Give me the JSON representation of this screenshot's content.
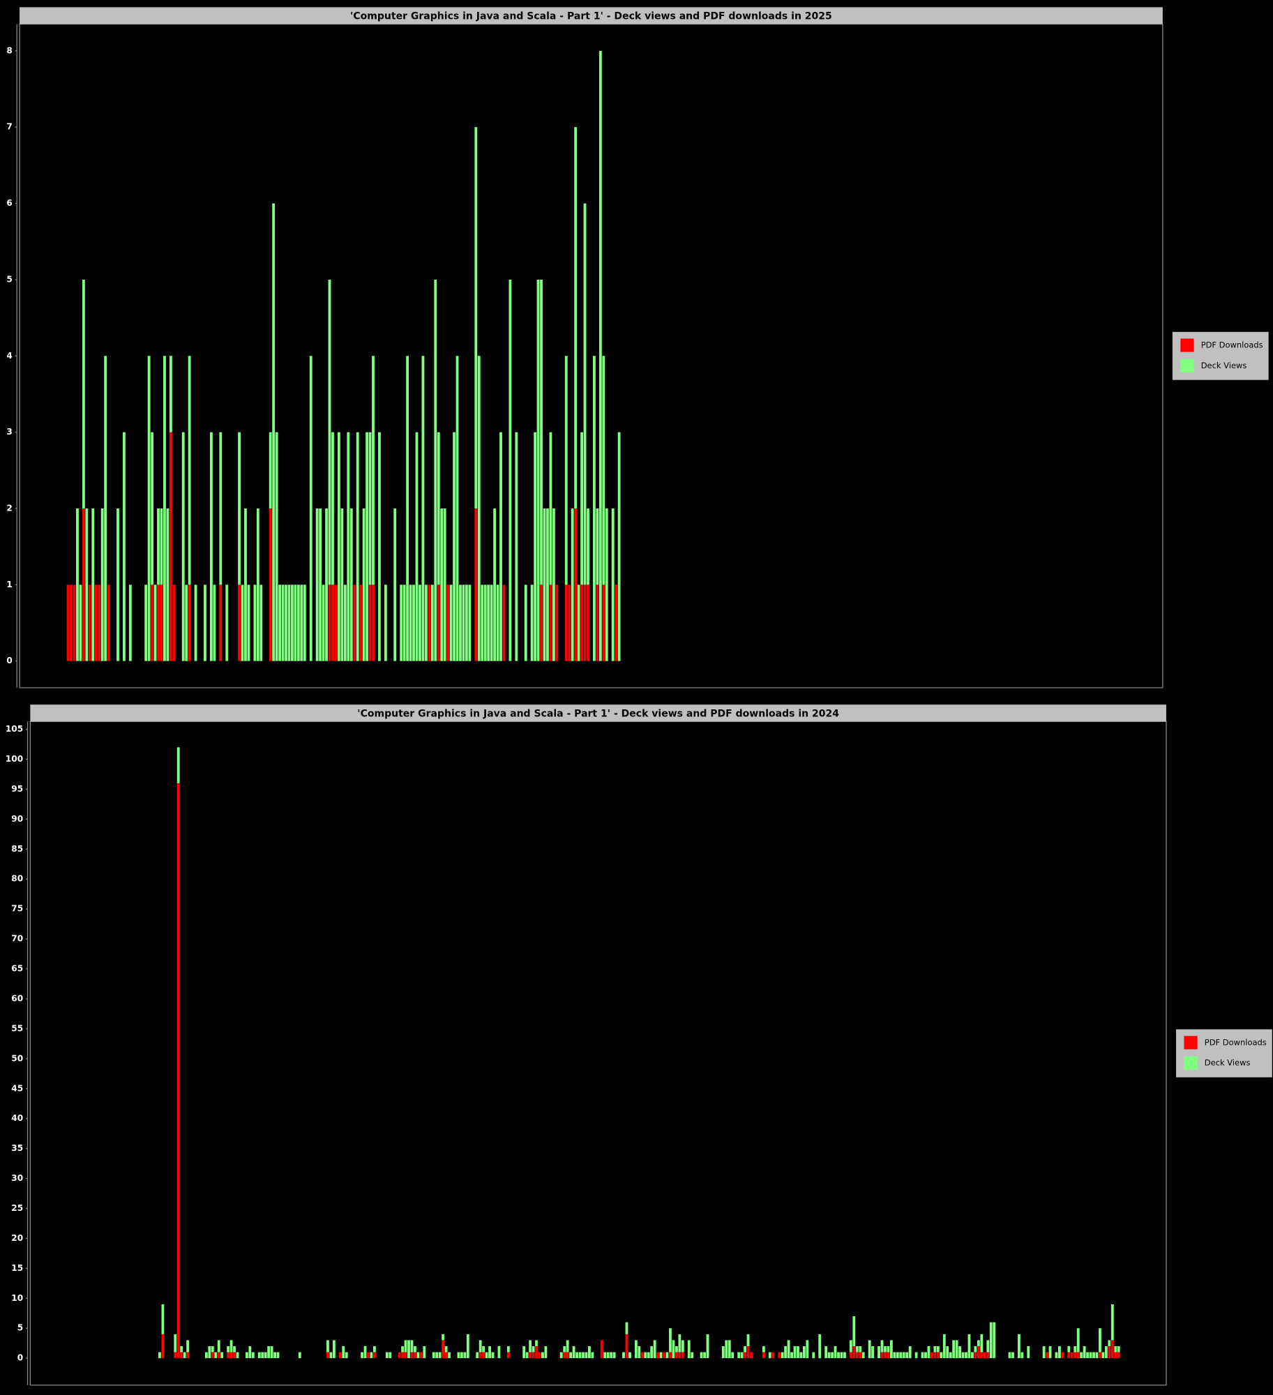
{
  "chart_data": [
    {
      "type": "bar",
      "stacked": true,
      "legend": "right",
      "title": "'Computer Graphics in Java and Scala - Part 1' - Deck views and PDF downloads in 2025",
      "ylim": [
        -0.35,
        8.35
      ],
      "yticks": [
        0,
        1,
        2,
        3,
        4,
        5,
        6,
        7,
        8
      ],
      "series": [
        {
          "name": "PDF Downloads",
          "color": "#ff0000",
          "values": [
            1,
            1,
            1,
            0,
            0,
            2,
            0,
            1,
            0,
            1,
            1,
            0,
            0,
            1,
            0,
            0,
            0,
            0,
            0,
            0,
            0,
            0,
            0,
            0,
            0,
            0,
            0,
            1,
            0,
            1,
            1,
            0,
            0,
            3,
            1,
            0,
            0,
            0,
            0,
            1,
            0,
            0,
            0,
            0,
            0,
            0,
            0,
            0,
            0,
            1,
            0,
            0,
            0,
            0,
            0,
            1,
            0,
            0,
            0,
            0,
            0,
            0,
            0,
            0,
            0,
            2,
            0,
            0,
            0,
            0,
            0,
            0,
            0,
            0,
            0,
            0,
            0,
            0,
            0,
            0,
            0,
            0,
            0,
            0,
            1,
            1,
            1,
            0,
            0,
            0,
            0,
            0,
            1,
            0,
            1,
            0,
            0,
            1,
            1,
            0,
            0,
            0,
            0,
            0,
            0,
            0,
            0,
            0,
            0,
            0,
            0,
            0,
            0,
            0,
            0,
            0,
            1,
            0,
            0,
            1,
            0,
            0,
            1,
            0,
            0,
            0,
            0,
            0,
            0,
            0,
            0,
            2,
            0,
            0,
            0,
            0,
            0,
            0,
            0,
            0,
            1,
            0,
            0,
            0,
            0,
            0,
            0,
            0,
            0,
            0,
            0,
            0,
            1,
            0,
            0,
            1,
            0,
            1,
            0,
            0,
            1,
            1,
            0,
            2,
            0,
            1,
            1,
            1,
            0,
            0,
            1,
            0,
            1,
            0,
            0,
            0,
            1,
            0
          ]
        },
        {
          "name": "Deck Views",
          "color": "#80ff80",
          "values": [
            0,
            0,
            0,
            2,
            1,
            3,
            2,
            0,
            2,
            0,
            0,
            2,
            4,
            0,
            0,
            0,
            2,
            0,
            3,
            0,
            1,
            0,
            0,
            0,
            0,
            1,
            4,
            2,
            1,
            1,
            1,
            4,
            2,
            1,
            0,
            0,
            0,
            3,
            1,
            3,
            0,
            1,
            0,
            0,
            1,
            0,
            3,
            1,
            0,
            2,
            0,
            1,
            0,
            0,
            0,
            2,
            1,
            2,
            1,
            0,
            1,
            2,
            1,
            0,
            0,
            1,
            6,
            3,
            1,
            1,
            1,
            1,
            1,
            1,
            1,
            1,
            1,
            0,
            4,
            0,
            2,
            2,
            1,
            2,
            4,
            2,
            0,
            3,
            2,
            1,
            3,
            2,
            0,
            3,
            0,
            2,
            3,
            2,
            3,
            0,
            3,
            0,
            1,
            0,
            0,
            2,
            0,
            1,
            1,
            4,
            1,
            1,
            3,
            1,
            4,
            1,
            0,
            1,
            5,
            2,
            2,
            2,
            0,
            1,
            3,
            4,
            1,
            1,
            1,
            1,
            0,
            5,
            4,
            1,
            1,
            1,
            1,
            2,
            1,
            3,
            0,
            0,
            5,
            0,
            3,
            0,
            0,
            1,
            0,
            1,
            3,
            5,
            4,
            2,
            2,
            2,
            2,
            0,
            0,
            0,
            3,
            0,
            2,
            5,
            1,
            2,
            5,
            1,
            0,
            4,
            1,
            8,
            3,
            2,
            0,
            2,
            0,
            3
          ]
        }
      ]
    },
    {
      "type": "bar",
      "stacked": true,
      "legend": "right",
      "title": "'Computer Graphics in Java and Scala - Part 1' - Deck views and PDF downloads in 2024",
      "ylim": [
        -4.5,
        106.3
      ],
      "yticks": [
        0,
        5,
        10,
        15,
        20,
        25,
        30,
        35,
        40,
        45,
        50,
        55,
        60,
        65,
        70,
        75,
        80,
        85,
        90,
        95,
        100,
        105
      ],
      "series": [
        {
          "name": "PDF Downloads",
          "color": "#ff0000",
          "values": [
            0,
            4,
            0,
            0,
            0,
            1,
            96,
            1,
            0,
            1,
            0,
            0,
            0,
            0,
            0,
            0,
            0,
            1,
            0,
            1,
            0,
            0,
            1,
            1,
            1,
            0,
            0,
            0,
            0,
            0,
            0,
            0,
            0,
            0,
            0,
            0,
            0,
            0,
            0,
            0,
            0,
            0,
            0,
            0,
            0,
            0,
            0,
            0,
            0,
            0,
            0,
            0,
            0,
            0,
            1,
            0,
            0,
            0,
            1,
            0,
            0,
            0,
            0,
            0,
            0,
            0,
            0,
            1,
            0,
            1,
            0,
            0,
            0,
            0,
            0,
            0,
            0,
            1,
            1,
            1,
            0,
            1,
            1,
            0,
            1,
            0,
            0,
            0,
            0,
            0,
            0,
            3,
            1,
            0,
            0,
            0,
            0,
            0,
            0,
            0,
            0,
            0,
            0,
            1,
            1,
            0,
            0,
            0,
            0,
            0,
            0,
            0,
            1,
            0,
            0,
            0,
            0,
            0,
            0,
            1,
            1,
            2,
            1,
            0,
            0,
            0,
            0,
            0,
            0,
            0,
            1,
            1,
            0,
            0,
            0,
            0,
            0,
            0,
            0,
            0,
            0,
            0,
            3,
            0,
            0,
            0,
            0,
            0,
            0,
            0,
            4,
            0,
            0,
            0,
            0,
            1,
            0,
            0,
            0,
            0,
            1,
            0,
            1,
            0,
            1,
            0,
            1,
            1,
            1,
            0,
            0,
            0,
            0,
            0,
            0,
            0,
            0,
            0,
            0,
            0,
            0,
            0,
            0,
            0,
            0,
            0,
            0,
            0,
            1,
            2,
            1,
            0,
            0,
            0,
            1,
            0,
            0,
            1,
            0,
            1,
            0,
            0,
            0,
            0,
            0,
            0,
            0,
            0,
            0,
            0,
            0,
            0,
            0,
            0,
            0,
            0,
            0,
            0,
            0,
            0,
            0,
            0,
            1,
            2,
            1,
            1,
            0,
            0,
            0,
            0,
            0,
            0,
            1,
            1,
            1,
            0,
            0,
            0,
            0,
            0,
            0,
            0,
            0,
            0,
            0,
            0,
            0,
            0,
            1,
            1,
            1,
            0,
            0,
            0,
            0,
            0,
            0,
            0,
            0,
            0,
            0,
            0,
            1,
            2,
            1,
            1,
            1,
            0,
            0,
            0,
            0,
            0,
            0,
            0,
            0,
            0,
            0,
            0,
            0,
            0,
            0,
            0,
            0,
            0,
            0,
            1,
            0,
            0,
            0,
            0,
            1,
            0,
            1,
            1,
            1,
            1,
            0,
            0,
            0,
            0,
            0,
            0,
            1,
            0,
            0,
            2,
            3,
            1,
            1,
            0
          ]
        },
        {
          "name": "Deck Views",
          "color": "#80ff80",
          "values": [
            1,
            5,
            0,
            0,
            0,
            3,
            6,
            1,
            1,
            2,
            0,
            0,
            0,
            0,
            0,
            1,
            2,
            1,
            1,
            2,
            1,
            0,
            1,
            2,
            1,
            1,
            0,
            0,
            1,
            2,
            1,
            0,
            1,
            1,
            1,
            2,
            2,
            1,
            1,
            0,
            0,
            0,
            0,
            0,
            0,
            1,
            0,
            0,
            0,
            0,
            0,
            0,
            0,
            0,
            2,
            1,
            3,
            0,
            0,
            2,
            1,
            0,
            0,
            0,
            0,
            1,
            2,
            0,
            1,
            1,
            0,
            0,
            0,
            1,
            1,
            0,
            0,
            0,
            1,
            2,
            3,
            2,
            1,
            1,
            0,
            2,
            0,
            0,
            1,
            1,
            1,
            1,
            1,
            1,
            0,
            0,
            1,
            1,
            1,
            4,
            0,
            0,
            1,
            2,
            1,
            1,
            2,
            1,
            0,
            2,
            0,
            0,
            1,
            0,
            0,
            0,
            0,
            2,
            1,
            2,
            1,
            1,
            0,
            1,
            2,
            0,
            0,
            0,
            0,
            1,
            1,
            2,
            1,
            2,
            1,
            1,
            1,
            1,
            2,
            1,
            0,
            0,
            0,
            1,
            1,
            1,
            1,
            0,
            0,
            1,
            2,
            1,
            0,
            3,
            2,
            0,
            1,
            1,
            2,
            3,
            0,
            1,
            0,
            1,
            4,
            3,
            1,
            3,
            2,
            0,
            3,
            1,
            0,
            0,
            1,
            1,
            4,
            0,
            0,
            0,
            0,
            2,
            3,
            3,
            1,
            0,
            1,
            1,
            1,
            2,
            0,
            0,
            0,
            0,
            1,
            0,
            1,
            0,
            0,
            0,
            1,
            2,
            3,
            1,
            2,
            2,
            1,
            2,
            3,
            0,
            1,
            0,
            4,
            0,
            2,
            1,
            1,
            2,
            1,
            1,
            1,
            0,
            2,
            5,
            1,
            1,
            1,
            0,
            3,
            2,
            0,
            2,
            2,
            1,
            1,
            3,
            1,
            1,
            1,
            1,
            1,
            2,
            0,
            1,
            0,
            1,
            1,
            2,
            0,
            1,
            1,
            1,
            4,
            2,
            1,
            3,
            3,
            2,
            1,
            1,
            4,
            1,
            1,
            1,
            3,
            0,
            2,
            6,
            6,
            0,
            0,
            0,
            0,
            1,
            1,
            0,
            4,
            1,
            0,
            2,
            0,
            0,
            0,
            0,
            2,
            0,
            2,
            0,
            1,
            2,
            0,
            0,
            1,
            0,
            1,
            4,
            1,
            2,
            1,
            1,
            1,
            1,
            4,
            1,
            2,
            1,
            6,
            1,
            1,
            0
          ]
        }
      ]
    }
  ]
}
